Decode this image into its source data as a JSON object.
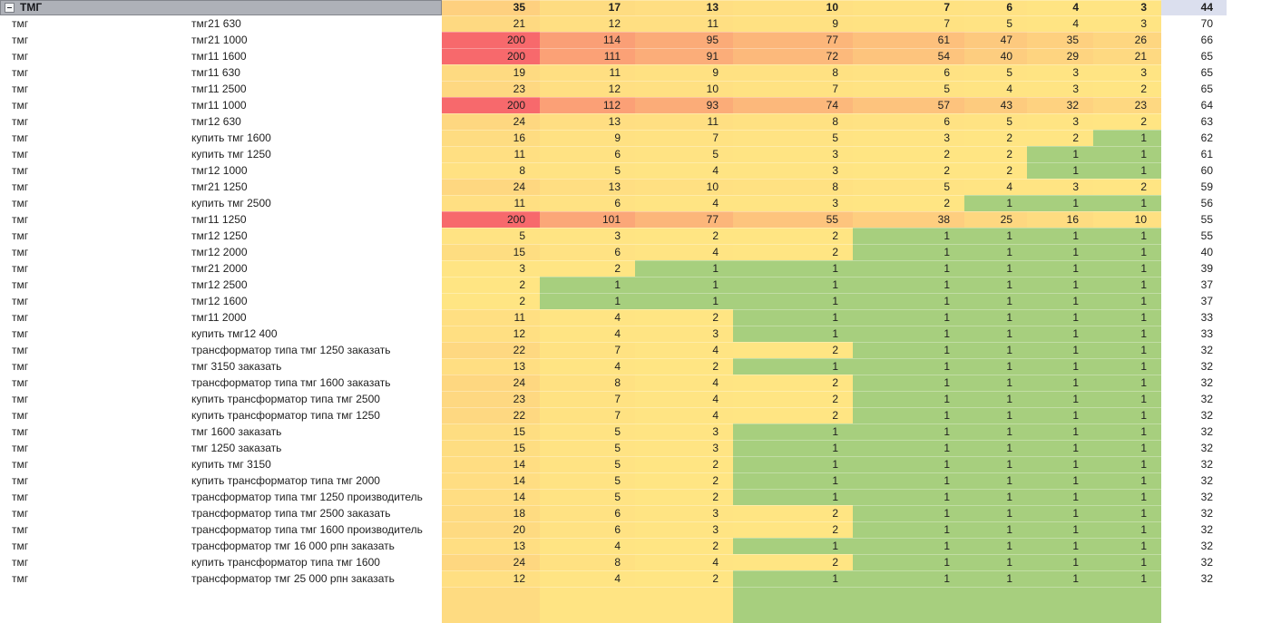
{
  "sheet": {
    "group_row": {
      "collapse_icon": "minus",
      "label": "ТМГ",
      "values": [
        35,
        17,
        13,
        10,
        7,
        6,
        4,
        3
      ],
      "total": 44
    },
    "row_group_label": "тмг",
    "rows": [
      {
        "keyword": "тмг21 630",
        "values": [
          21,
          12,
          11,
          9,
          7,
          5,
          4,
          3
        ],
        "total": 70
      },
      {
        "keyword": "тмг21 1000",
        "values": [
          200,
          114,
          95,
          77,
          61,
          47,
          35,
          26
        ],
        "total": 66
      },
      {
        "keyword": "тмг11 1600",
        "values": [
          200,
          111,
          91,
          72,
          54,
          40,
          29,
          21
        ],
        "total": 65
      },
      {
        "keyword": "тмг11 630",
        "values": [
          19,
          11,
          9,
          8,
          6,
          5,
          3,
          3
        ],
        "total": 65
      },
      {
        "keyword": "тмг11 2500",
        "values": [
          23,
          12,
          10,
          7,
          5,
          4,
          3,
          2
        ],
        "total": 65
      },
      {
        "keyword": "тмг11 1000",
        "values": [
          200,
          112,
          93,
          74,
          57,
          43,
          32,
          23
        ],
        "total": 64
      },
      {
        "keyword": "тмг12 630",
        "values": [
          24,
          13,
          11,
          8,
          6,
          5,
          3,
          2
        ],
        "total": 63
      },
      {
        "keyword": "купить тмг 1600",
        "values": [
          16,
          9,
          7,
          5,
          3,
          2,
          2,
          1
        ],
        "total": 62
      },
      {
        "keyword": "купить тмг 1250",
        "values": [
          11,
          6,
          5,
          3,
          2,
          2,
          1,
          1
        ],
        "total": 61
      },
      {
        "keyword": "тмг12 1000",
        "values": [
          8,
          5,
          4,
          3,
          2,
          2,
          1,
          1
        ],
        "total": 60
      },
      {
        "keyword": "тмг21 1250",
        "values": [
          24,
          13,
          10,
          8,
          5,
          4,
          3,
          2
        ],
        "total": 59
      },
      {
        "keyword": "купить тмг 2500",
        "values": [
          11,
          6,
          4,
          3,
          2,
          1,
          1,
          1
        ],
        "total": 56
      },
      {
        "keyword": "тмг11 1250",
        "values": [
          200,
          101,
          77,
          55,
          38,
          25,
          16,
          10
        ],
        "total": 55
      },
      {
        "keyword": "тмг12 1250",
        "values": [
          5,
          3,
          2,
          2,
          1,
          1,
          1,
          1
        ],
        "total": 55
      },
      {
        "keyword": "тмг12 2000",
        "values": [
          15,
          6,
          4,
          2,
          1,
          1,
          1,
          1
        ],
        "total": 40
      },
      {
        "keyword": "тмг21 2000",
        "values": [
          3,
          2,
          1,
          1,
          1,
          1,
          1,
          1
        ],
        "total": 39
      },
      {
        "keyword": "тмг12 2500",
        "values": [
          2,
          1,
          1,
          1,
          1,
          1,
          1,
          1
        ],
        "total": 37
      },
      {
        "keyword": "тмг12 1600",
        "values": [
          2,
          1,
          1,
          1,
          1,
          1,
          1,
          1
        ],
        "total": 37
      },
      {
        "keyword": "тмг11 2000",
        "values": [
          11,
          4,
          2,
          1,
          1,
          1,
          1,
          1
        ],
        "total": 33
      },
      {
        "keyword": "купить тмг12 400",
        "values": [
          12,
          4,
          3,
          1,
          1,
          1,
          1,
          1
        ],
        "total": 33
      },
      {
        "keyword": "трансформатор типа тмг 1250 заказать",
        "values": [
          22,
          7,
          4,
          2,
          1,
          1,
          1,
          1
        ],
        "total": 32
      },
      {
        "keyword": "тмг 3150 заказать",
        "values": [
          13,
          4,
          2,
          1,
          1,
          1,
          1,
          1
        ],
        "total": 32
      },
      {
        "keyword": "трансформатор типа тмг 1600 заказать",
        "values": [
          24,
          8,
          4,
          2,
          1,
          1,
          1,
          1
        ],
        "total": 32
      },
      {
        "keyword": "купить трансформатор типа тмг 2500",
        "values": [
          23,
          7,
          4,
          2,
          1,
          1,
          1,
          1
        ],
        "total": 32
      },
      {
        "keyword": "купить трансформатор типа тмг 1250",
        "values": [
          22,
          7,
          4,
          2,
          1,
          1,
          1,
          1
        ],
        "total": 32
      },
      {
        "keyword": "тмг 1600 заказать",
        "values": [
          15,
          5,
          3,
          1,
          1,
          1,
          1,
          1
        ],
        "total": 32
      },
      {
        "keyword": "тмг 1250 заказать",
        "values": [
          15,
          5,
          3,
          1,
          1,
          1,
          1,
          1
        ],
        "total": 32
      },
      {
        "keyword": "купить тмг 3150",
        "values": [
          14,
          5,
          2,
          1,
          1,
          1,
          1,
          1
        ],
        "total": 32
      },
      {
        "keyword": "купить трансформатор типа тмг 2000",
        "values": [
          14,
          5,
          2,
          1,
          1,
          1,
          1,
          1
        ],
        "total": 32
      },
      {
        "keyword": "трансформатор типа тмг 1250 производитель",
        "values": [
          14,
          5,
          2,
          1,
          1,
          1,
          1,
          1
        ],
        "total": 32
      },
      {
        "keyword": "трансформатор типа тмг 2500 заказать",
        "values": [
          18,
          6,
          3,
          2,
          1,
          1,
          1,
          1
        ],
        "total": 32
      },
      {
        "keyword": "трансформатор типа тмг 1600 производитель",
        "values": [
          20,
          6,
          3,
          2,
          1,
          1,
          1,
          1
        ],
        "total": 32
      },
      {
        "keyword": "трансформатор тмг 16 000 рпн заказать",
        "values": [
          13,
          4,
          2,
          1,
          1,
          1,
          1,
          1
        ],
        "total": 32
      },
      {
        "keyword": "купить трансформатор типа тмг 1600",
        "values": [
          24,
          8,
          4,
          2,
          1,
          1,
          1,
          1
        ],
        "total": 32
      },
      {
        "keyword": "трансформатор тмг 25 000 рпн заказать",
        "values": [
          12,
          4,
          2,
          1,
          1,
          1,
          1,
          1
        ],
        "total": 32
      }
    ],
    "heatmap_colors": {
      "green": "#A7CF7E",
      "yellow": "#FFE583",
      "red": "#F7696C",
      "scale_min_value": 1,
      "scale_mid_value": 2,
      "scale_max_value": 200
    },
    "colors": {
      "group_header_bg": "#AEB1B8",
      "group_header_border": "#83868D",
      "total_header_bg": "#DBDFEE",
      "text": "#1E1E1E"
    }
  }
}
